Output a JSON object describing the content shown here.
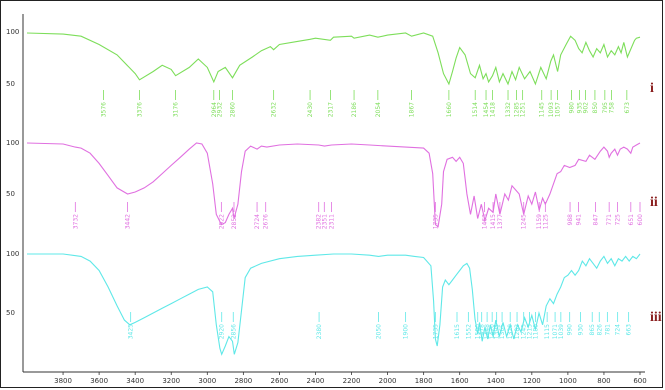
{
  "chart_data": {
    "type": "line",
    "title": "",
    "xlabel": "",
    "ylabel": "",
    "xlim": [
      4000,
      600
    ],
    "x_ticks": [
      "3800",
      "3600",
      "3400",
      "3200",
      "3000",
      "2800",
      "2600",
      "2400",
      "2200",
      "2000",
      "1800",
      "1600",
      "1400",
      "1200",
      "1000",
      "800",
      "600"
    ],
    "y_ticks": [
      "100",
      "50"
    ],
    "grid": false,
    "legend": "none",
    "series": [
      {
        "label": "i",
        "color": "#7dde5a",
        "points": [
          [
            4000,
            99
          ],
          [
            3800,
            98
          ],
          [
            3700,
            96
          ],
          [
            3600,
            88
          ],
          [
            3500,
            78
          ],
          [
            3400,
            60
          ],
          [
            3376,
            54
          ],
          [
            3300,
            62
          ],
          [
            3250,
            68
          ],
          [
            3200,
            64
          ],
          [
            3176,
            58
          ],
          [
            3100,
            66
          ],
          [
            3050,
            74
          ],
          [
            3000,
            66
          ],
          [
            2964,
            52
          ],
          [
            2940,
            62
          ],
          [
            2900,
            66
          ],
          [
            2860,
            56
          ],
          [
            2820,
            68
          ],
          [
            2750,
            76
          ],
          [
            2700,
            82
          ],
          [
            2650,
            86
          ],
          [
            2632,
            83
          ],
          [
            2600,
            88
          ],
          [
            2500,
            91
          ],
          [
            2430,
            93
          ],
          [
            2400,
            94
          ],
          [
            2317,
            92
          ],
          [
            2300,
            95
          ],
          [
            2200,
            96
          ],
          [
            2186,
            94
          ],
          [
            2100,
            97
          ],
          [
            2054,
            95
          ],
          [
            2000,
            97
          ],
          [
            1900,
            99
          ],
          [
            1867,
            96
          ],
          [
            1800,
            99
          ],
          [
            1750,
            96
          ],
          [
            1720,
            80
          ],
          [
            1690,
            60
          ],
          [
            1660,
            50
          ],
          [
            1640,
            62
          ],
          [
            1620,
            75
          ],
          [
            1600,
            85
          ],
          [
            1570,
            78
          ],
          [
            1540,
            60
          ],
          [
            1514,
            56
          ],
          [
            1490,
            68
          ],
          [
            1470,
            55
          ],
          [
            1454,
            60
          ],
          [
            1440,
            52
          ],
          [
            1418,
            58
          ],
          [
            1400,
            66
          ],
          [
            1380,
            52
          ],
          [
            1360,
            60
          ],
          [
            1332,
            50
          ],
          [
            1310,
            62
          ],
          [
            1290,
            54
          ],
          [
            1270,
            66
          ],
          [
            1240,
            55
          ],
          [
            1210,
            62
          ],
          [
            1180,
            50
          ],
          [
            1150,
            66
          ],
          [
            1120,
            55
          ],
          [
            1095,
            72
          ],
          [
            1080,
            78
          ],
          [
            1057,
            62
          ],
          [
            1040,
            78
          ],
          [
            1010,
            88
          ],
          [
            985,
            96
          ],
          [
            960,
            92
          ],
          [
            940,
            84
          ],
          [
            921,
            80
          ],
          [
            900,
            90
          ],
          [
            880,
            82
          ],
          [
            860,
            76
          ],
          [
            840,
            84
          ],
          [
            820,
            80
          ],
          [
            800,
            88
          ],
          [
            780,
            76
          ],
          [
            760,
            82
          ],
          [
            740,
            78
          ],
          [
            720,
            86
          ],
          [
            705,
            80
          ],
          [
            690,
            90
          ],
          [
            670,
            76
          ],
          [
            650,
            84
          ],
          [
            630,
            92
          ],
          [
            620,
            94
          ],
          [
            600,
            95
          ]
        ],
        "peaks": [
          "3576",
          "3376",
          "3176",
          "2964",
          "2932",
          "2860",
          "2632",
          "2430",
          "2317",
          "2186",
          "2054",
          "1867",
          "1660",
          "1514",
          "1454",
          "1418",
          "1332",
          "1285",
          "1251",
          "1145",
          "1093",
          "1057",
          "980",
          "935",
          "902",
          "850",
          "795",
          "758",
          "673"
        ]
      },
      {
        "label": "ii",
        "color": "#e070e0",
        "points": [
          [
            4000,
            100
          ],
          [
            3800,
            99
          ],
          [
            3732,
            96
          ],
          [
            3700,
            95
          ],
          [
            3650,
            90
          ],
          [
            3600,
            80
          ],
          [
            3550,
            68
          ],
          [
            3500,
            56
          ],
          [
            3442,
            50
          ],
          [
            3400,
            52
          ],
          [
            3350,
            56
          ],
          [
            3300,
            62
          ],
          [
            3250,
            70
          ],
          [
            3200,
            78
          ],
          [
            3150,
            86
          ],
          [
            3100,
            94
          ],
          [
            3060,
            100
          ],
          [
            3030,
            99
          ],
          [
            3000,
            90
          ],
          [
            2970,
            60
          ],
          [
            2950,
            30
          ],
          [
            2922,
            20
          ],
          [
            2900,
            22
          ],
          [
            2880,
            30
          ],
          [
            2860,
            36
          ],
          [
            2852,
            26
          ],
          [
            2830,
            40
          ],
          [
            2810,
            72
          ],
          [
            2790,
            92
          ],
          [
            2760,
            97
          ],
          [
            2724,
            94
          ],
          [
            2700,
            97
          ],
          [
            2670,
            96
          ],
          [
            2600,
            98
          ],
          [
            2500,
            99
          ],
          [
            2382,
            98
          ],
          [
            2350,
            97
          ],
          [
            2311,
            98
          ],
          [
            2200,
            99
          ],
          [
            2100,
            98
          ],
          [
            2000,
            97
          ],
          [
            1900,
            96
          ],
          [
            1800,
            95
          ],
          [
            1770,
            90
          ],
          [
            1750,
            70
          ],
          [
            1735,
            20
          ],
          [
            1720,
            18
          ],
          [
            1700,
            40
          ],
          [
            1690,
            72
          ],
          [
            1670,
            84
          ],
          [
            1640,
            86
          ],
          [
            1620,
            82
          ],
          [
            1600,
            86
          ],
          [
            1580,
            80
          ],
          [
            1560,
            50
          ],
          [
            1540,
            30
          ],
          [
            1520,
            48
          ],
          [
            1500,
            26
          ],
          [
            1480,
            40
          ],
          [
            1460,
            24
          ],
          [
            1440,
            36
          ],
          [
            1415,
            32
          ],
          [
            1400,
            50
          ],
          [
            1377,
            30
          ],
          [
            1350,
            50
          ],
          [
            1330,
            44
          ],
          [
            1310,
            58
          ],
          [
            1290,
            54
          ],
          [
            1270,
            50
          ],
          [
            1245,
            30
          ],
          [
            1220,
            48
          ],
          [
            1200,
            40
          ],
          [
            1180,
            52
          ],
          [
            1159,
            34
          ],
          [
            1140,
            46
          ],
          [
            1125,
            40
          ],
          [
            1100,
            50
          ],
          [
            1080,
            60
          ],
          [
            1060,
            70
          ],
          [
            1040,
            72
          ],
          [
            1020,
            78
          ],
          [
            990,
            76
          ],
          [
            960,
            78
          ],
          [
            940,
            84
          ],
          [
            900,
            82
          ],
          [
            880,
            88
          ],
          [
            850,
            84
          ],
          [
            820,
            92
          ],
          [
            800,
            96
          ],
          [
            780,
            92
          ],
          [
            771,
            86
          ],
          [
            760,
            90
          ],
          [
            740,
            94
          ],
          [
            725,
            88
          ],
          [
            710,
            94
          ],
          [
            690,
            96
          ],
          [
            670,
            94
          ],
          [
            651,
            90
          ],
          [
            640,
            96
          ],
          [
            620,
            98
          ],
          [
            600,
            100
          ]
        ],
        "peaks": [
          "3732",
          "3442",
          "2922",
          "2852",
          "2724",
          "2676",
          "2382",
          "2351",
          "2311",
          "1735",
          "1463",
          "1415",
          "1377",
          "1245",
          "1159",
          "1125",
          "988",
          "941",
          "847",
          "771",
          "725",
          "651",
          "600"
        ]
      },
      {
        "label": "iii",
        "color": "#5fe8e8",
        "points": [
          [
            4000,
            100
          ],
          [
            3800,
            100
          ],
          [
            3700,
            98
          ],
          [
            3650,
            94
          ],
          [
            3600,
            86
          ],
          [
            3550,
            72
          ],
          [
            3500,
            56
          ],
          [
            3460,
            44
          ],
          [
            3430,
            40
          ],
          [
            3400,
            42
          ],
          [
            3350,
            46
          ],
          [
            3300,
            50
          ],
          [
            3250,
            54
          ],
          [
            3200,
            58
          ],
          [
            3150,
            62
          ],
          [
            3100,
            66
          ],
          [
            3050,
            70
          ],
          [
            3000,
            72
          ],
          [
            2970,
            68
          ],
          [
            2950,
            40
          ],
          [
            2930,
            20
          ],
          [
            2920,
            15
          ],
          [
            2900,
            22
          ],
          [
            2880,
            30
          ],
          [
            2860,
            26
          ],
          [
            2850,
            15
          ],
          [
            2830,
            25
          ],
          [
            2810,
            52
          ],
          [
            2790,
            80
          ],
          [
            2760,
            88
          ],
          [
            2700,
            92
          ],
          [
            2600,
            96
          ],
          [
            2500,
            98
          ],
          [
            2400,
            99
          ],
          [
            2300,
            100
          ],
          [
            2200,
            100
          ],
          [
            2100,
            99
          ],
          [
            2050,
            98
          ],
          [
            2000,
            99
          ],
          [
            1900,
            99
          ],
          [
            1850,
            98
          ],
          [
            1800,
            97
          ],
          [
            1760,
            90
          ],
          [
            1745,
            60
          ],
          [
            1735,
            28
          ],
          [
            1725,
            22
          ],
          [
            1710,
            40
          ],
          [
            1695,
            72
          ],
          [
            1680,
            78
          ],
          [
            1660,
            74
          ],
          [
            1640,
            78
          ],
          [
            1620,
            82
          ],
          [
            1600,
            86
          ],
          [
            1580,
            90
          ],
          [
            1560,
            92
          ],
          [
            1545,
            88
          ],
          [
            1530,
            70
          ],
          [
            1515,
            45
          ],
          [
            1500,
            32
          ],
          [
            1490,
            42
          ],
          [
            1475,
            26
          ],
          [
            1460,
            38
          ],
          [
            1445,
            28
          ],
          [
            1430,
            40
          ],
          [
            1415,
            30
          ],
          [
            1400,
            44
          ],
          [
            1380,
            30
          ],
          [
            1360,
            42
          ],
          [
            1340,
            30
          ],
          [
            1320,
            40
          ],
          [
            1300,
            28
          ],
          [
            1280,
            40
          ],
          [
            1260,
            34
          ],
          [
            1240,
            46
          ],
          [
            1220,
            38
          ],
          [
            1200,
            48
          ],
          [
            1180,
            36
          ],
          [
            1160,
            50
          ],
          [
            1140,
            40
          ],
          [
            1120,
            56
          ],
          [
            1100,
            62
          ],
          [
            1080,
            58
          ],
          [
            1060,
            66
          ],
          [
            1040,
            72
          ],
          [
            1020,
            80
          ],
          [
            1000,
            82
          ],
          [
            980,
            86
          ],
          [
            960,
            82
          ],
          [
            940,
            86
          ],
          [
            920,
            94
          ],
          [
            900,
            90
          ],
          [
            880,
            96
          ],
          [
            860,
            92
          ],
          [
            840,
            88
          ],
          [
            820,
            94
          ],
          [
            800,
            98
          ],
          [
            780,
            92
          ],
          [
            760,
            96
          ],
          [
            740,
            90
          ],
          [
            720,
            96
          ],
          [
            700,
            94
          ],
          [
            680,
            98
          ],
          [
            660,
            94
          ],
          [
            640,
            98
          ],
          [
            620,
            96
          ],
          [
            600,
            100
          ]
        ],
        "peaks": [
          "3425",
          "2920",
          "2856",
          "2380",
          "2050",
          "1900",
          "1735",
          "1615",
          "1552",
          "1500",
          "1478",
          "1448",
          "1420",
          "1395",
          "1365",
          "1320",
          "1282",
          "1245",
          "1213",
          "1180",
          "1115",
          "1071",
          "1039",
          "990",
          "930",
          "865",
          "826",
          "781",
          "724",
          "663"
        ]
      }
    ]
  }
}
